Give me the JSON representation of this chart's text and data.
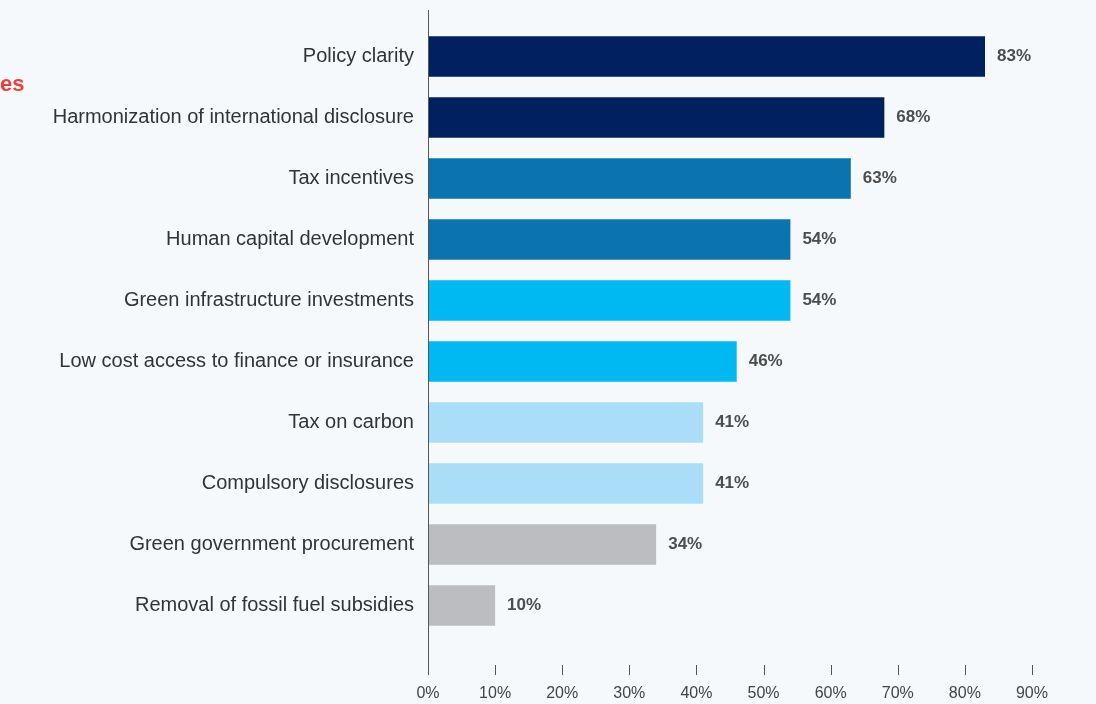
{
  "chart_data": {
    "type": "bar",
    "orientation": "horizontal",
    "categories": [
      "Policy clarity",
      "Harmonization of international disclosure",
      "Tax incentives",
      "Human capital development",
      "Green infrastructure investments",
      "Low cost access to finance or insurance",
      "Tax on carbon",
      "Compulsory disclosures",
      "Green government procurement",
      "Removal of fossil fuel subsidies"
    ],
    "values": [
      83,
      68,
      63,
      54,
      54,
      46,
      41,
      41,
      34,
      10
    ],
    "colors": [
      "#002060",
      "#002060",
      "#0b73b0",
      "#0b73b0",
      "#00b9f2",
      "#00b9f2",
      "#a9ddf8",
      "#a9ddf8",
      "#bcbdc1",
      "#bcbdc1"
    ],
    "value_labels": [
      "83%",
      "68%",
      "63%",
      "54%",
      "54%",
      "46%",
      "41%",
      "41%",
      "34%",
      "10%"
    ],
    "xlim": [
      0,
      90
    ],
    "xticks": [
      {
        "value": 0,
        "label": "0%"
      },
      {
        "value": 10,
        "label": "10%"
      },
      {
        "value": 20,
        "label": "20%"
      },
      {
        "value": 30,
        "label": "30%"
      },
      {
        "value": 40,
        "label": "40%"
      },
      {
        "value": 50,
        "label": "50%"
      },
      {
        "value": 60,
        "label": "60%"
      },
      {
        "value": 70,
        "label": "70%"
      },
      {
        "value": 80,
        "label": "80%"
      },
      {
        "value": 90,
        "label": "90%"
      }
    ],
    "grid": false,
    "legend": false,
    "annotations": [
      "es"
    ]
  }
}
